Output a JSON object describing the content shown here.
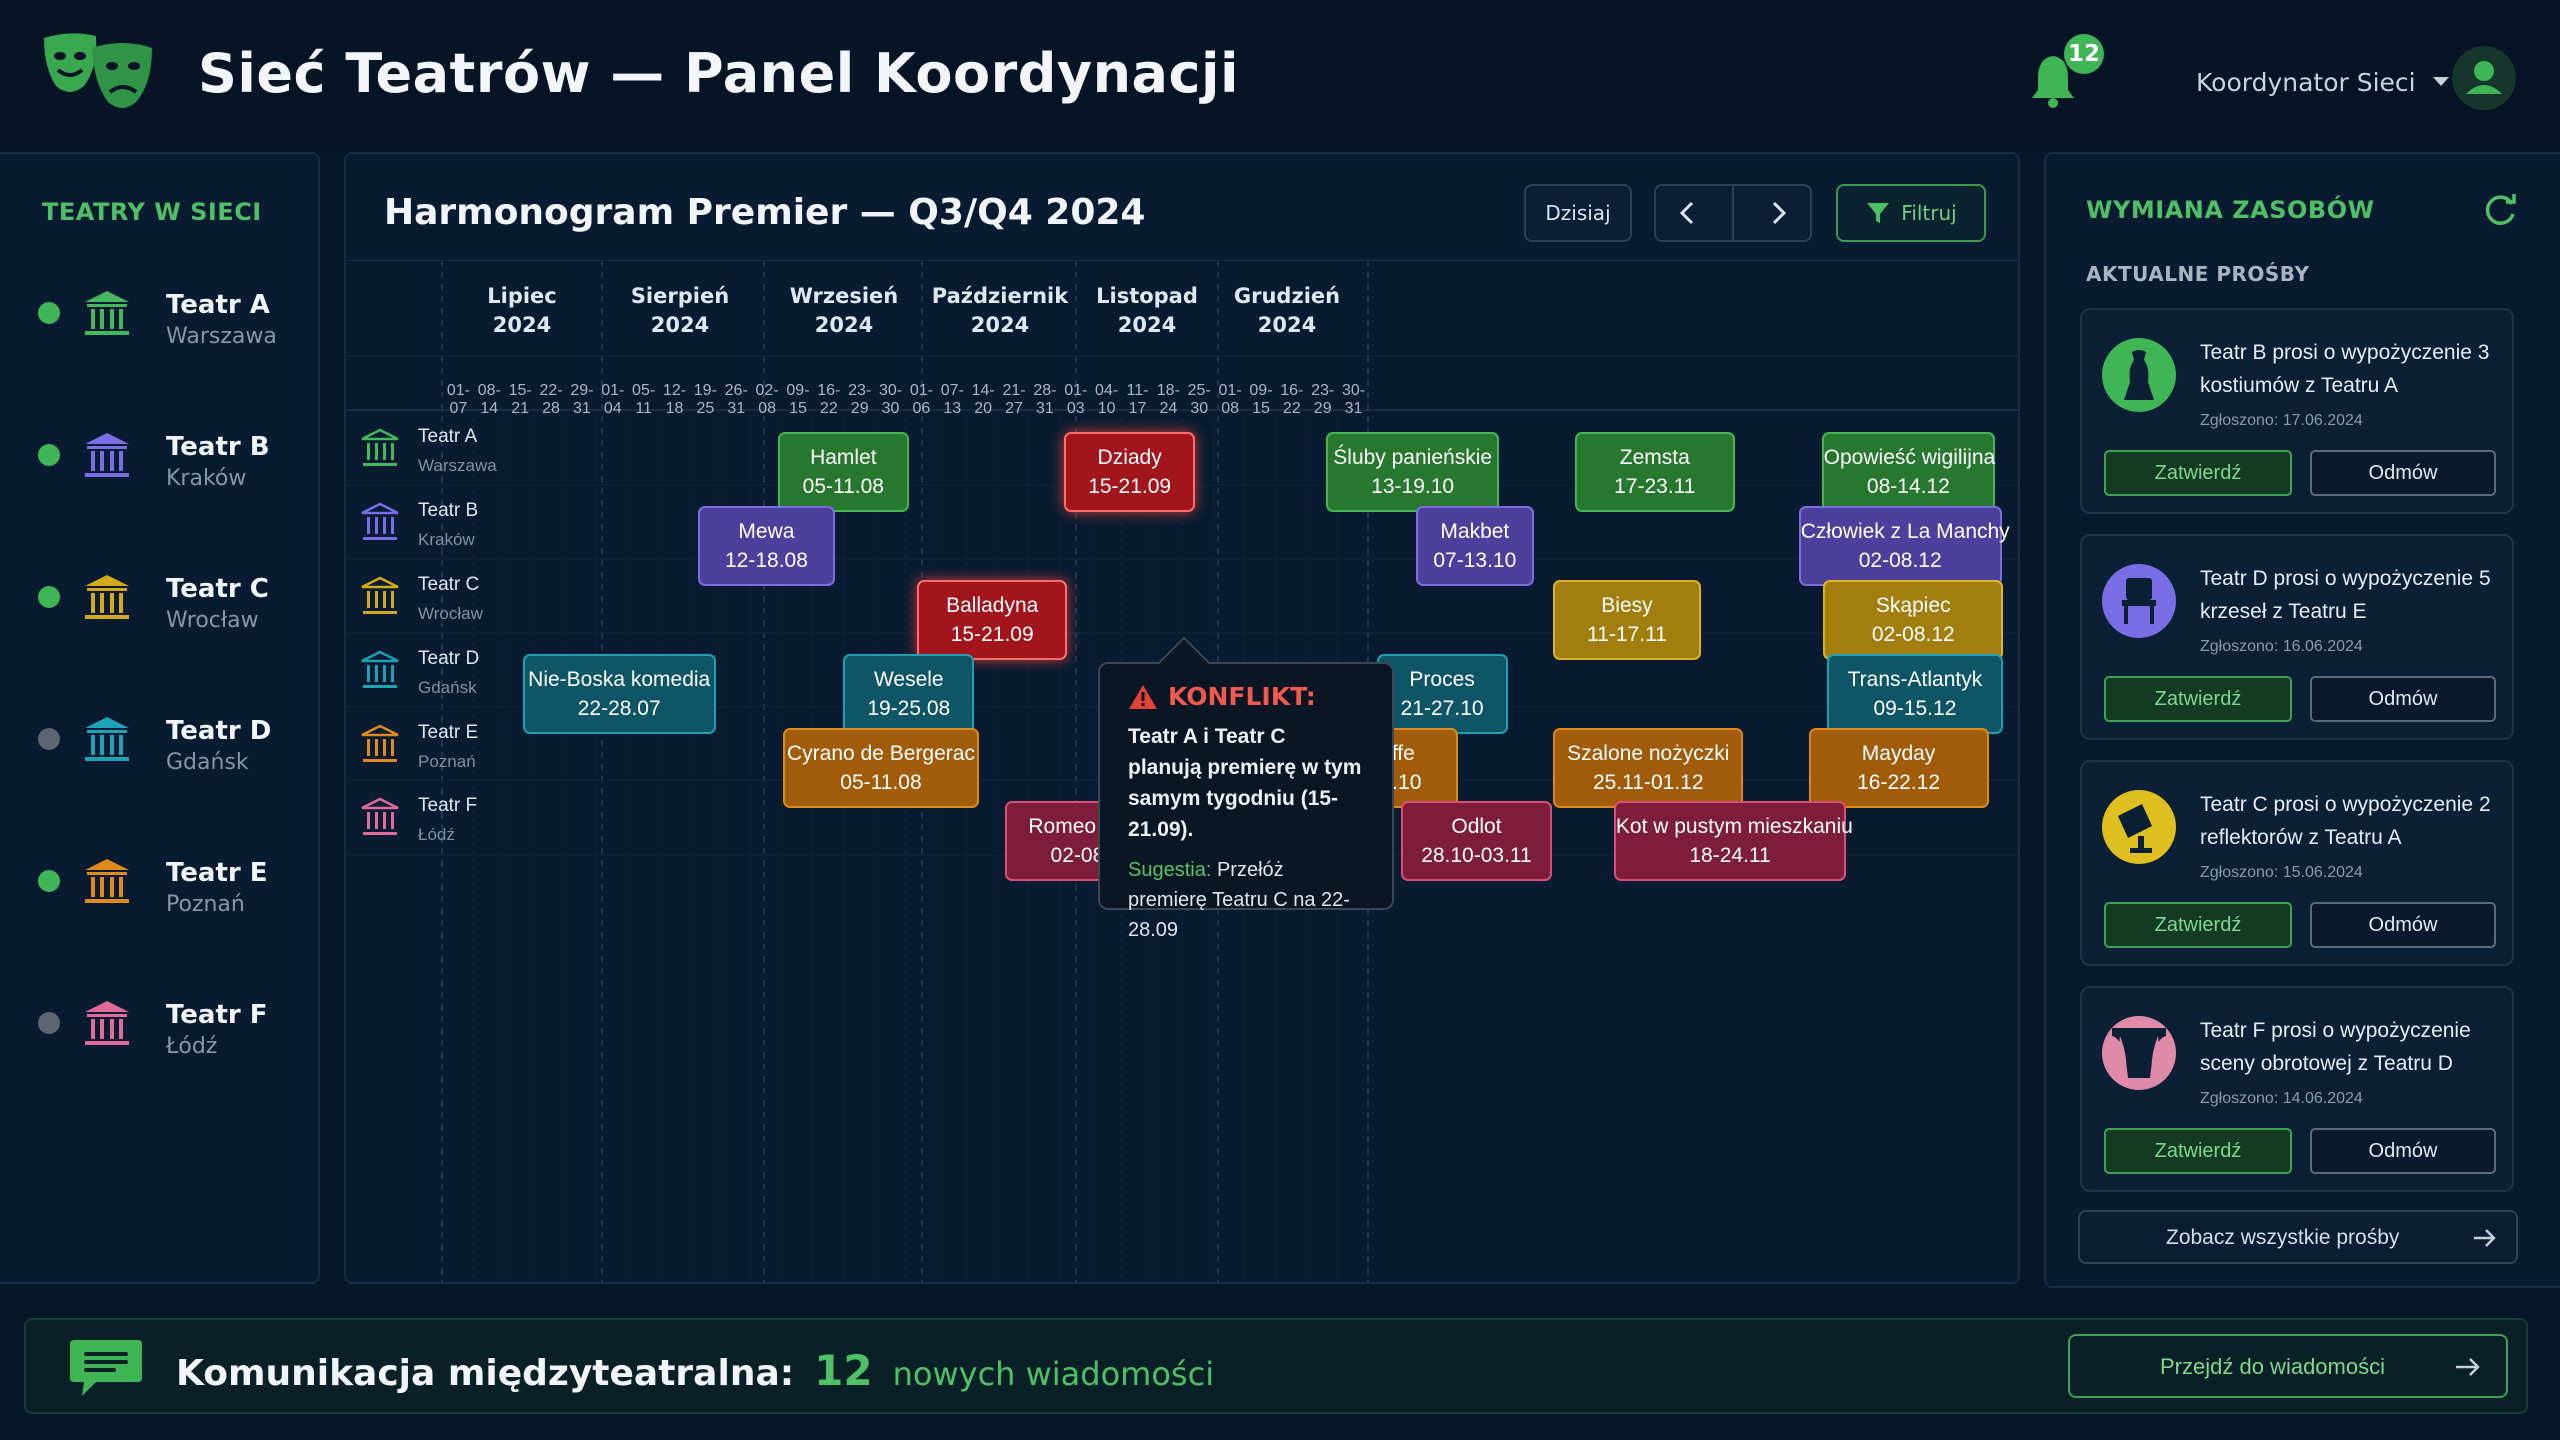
{
  "header": {
    "title": "Sieć Teatrów — Panel Koordynacji",
    "notifications_count": "12",
    "user_label": "Koordynator Sieci"
  },
  "theaters_panel": {
    "title": "TEATRY W SIECI",
    "items": [
      {
        "name": "Teatr A",
        "city": "Warszawa",
        "status": "online",
        "color": "#44b85c"
      },
      {
        "name": "Teatr B",
        "city": "Kraków",
        "status": "online",
        "color": "#7a6ee6"
      },
      {
        "name": "Teatr C",
        "city": "Wrocław",
        "status": "online",
        "color": "#d4a91c"
      },
      {
        "name": "Teatr D",
        "city": "Gdańsk",
        "status": "offline",
        "color": "#1ea2b5"
      },
      {
        "name": "Teatr E",
        "city": "Poznań",
        "status": "online",
        "color": "#e08a1e"
      },
      {
        "name": "Teatr F",
        "city": "Łódź",
        "status": "offline",
        "color": "#e06a9a"
      }
    ]
  },
  "schedule": {
    "title": "Harmonogram Premier — Q3/Q4 2024",
    "today_label": "Dzisiaj",
    "filter_label": "Filtruj",
    "months": [
      {
        "name": "Lipiec",
        "year": "2024"
      },
      {
        "name": "Sierpień",
        "year": "2024"
      },
      {
        "name": "Wrzesień",
        "year": "2024"
      },
      {
        "name": "Październik",
        "year": "2024"
      },
      {
        "name": "Listopad",
        "year": "2024"
      },
      {
        "name": "Grudzień",
        "year": "2024"
      }
    ],
    "weeks": [
      "01-07",
      "08-14",
      "15-21",
      "22-28",
      "29-31",
      "01-04",
      "05-11",
      "12-18",
      "19-25",
      "26-31",
      "02-08",
      "09-15",
      "16-22",
      "23-29",
      "30-30",
      "01-06",
      "07-13",
      "14-20",
      "21-27",
      "28-31",
      "01-03",
      "04-10",
      "11-17",
      "18-24",
      "25-30",
      "01-08",
      "09-15",
      "16-22",
      "23-29",
      "30-31"
    ],
    "rows": [
      {
        "name": "Teatr A",
        "city": "Warszawa"
      },
      {
        "name": "Teatr B",
        "city": "Kraków"
      },
      {
        "name": "Teatr C",
        "city": "Wrocław"
      },
      {
        "name": "Teatr D",
        "city": "Gdańsk"
      },
      {
        "name": "Teatr E",
        "city": "Poznań"
      },
      {
        "name": "Teatr F",
        "city": "Łódź"
      }
    ],
    "events": [
      {
        "title": "Hamlet",
        "dates": "05-11.08",
        "theater": "Teatr A"
      },
      {
        "title": "Dziady",
        "dates": "15-21.09",
        "theater": "Teatr A",
        "conflict": true
      },
      {
        "title": "Śluby panieńskie",
        "dates": "13-19.10",
        "theater": "Teatr A"
      },
      {
        "title": "Zemsta",
        "dates": "17-23.11",
        "theater": "Teatr A"
      },
      {
        "title": "Opowieść wigilijna",
        "dates": "08-14.12",
        "theater": "Teatr A"
      },
      {
        "title": "Mewa",
        "dates": "12-18.08",
        "theater": "Teatr B"
      },
      {
        "title": "Makbet",
        "dates": "07-13.10",
        "theater": "Teatr B"
      },
      {
        "title": "Człowiek z La Manchy",
        "dates": "02-08.12",
        "theater": "Teatr B"
      },
      {
        "title": "Balladyna",
        "dates": "15-21.09",
        "theater": "Teatr C",
        "conflict": true
      },
      {
        "title": "Biesy",
        "dates": "11-17.11",
        "theater": "Teatr C"
      },
      {
        "title": "Skąpiec",
        "dates": "02-08.12",
        "theater": "Teatr C"
      },
      {
        "title": "Nie-Boska komedia",
        "dates": "22-28.07",
        "theater": "Teatr D"
      },
      {
        "title": "Wesele",
        "dates": "19-25.08",
        "theater": "Teatr D"
      },
      {
        "title": "Proces",
        "dates": "21-27.10",
        "theater": "Teatr D"
      },
      {
        "title": "Trans-Atlantyk",
        "dates": "09-15.12",
        "theater": "Teatr D"
      },
      {
        "title": "Cyrano de Bergerac",
        "dates": "05-11.08",
        "theater": "Teatr E"
      },
      {
        "title": "Tartuffe",
        "dates": "14-20.10",
        "theater": "Teatr E"
      },
      {
        "title": "Szalone nożyczki",
        "dates": "25.11-01.12",
        "theater": "Teatr E"
      },
      {
        "title": "Mayday",
        "dates": "16-22.12",
        "theater": "Teatr E"
      },
      {
        "title": "Romeo i Julia",
        "dates": "02-08.09",
        "theater": "Teatr F"
      },
      {
        "title": "Odlot",
        "dates": "28.10-03.11",
        "theater": "Teatr F"
      },
      {
        "title": "Kot w pustym mieszkaniu",
        "dates": "18-24.11",
        "theater": "Teatr F"
      }
    ],
    "conflict": {
      "title": "KONFLIKT:",
      "message": "Teatr A i Teatr C planują premierę w tym samym tygodniu (15-21.09).",
      "suggestion_label": "Sugestia:",
      "suggestion_text": "Przełóż premierę Teatru C na 22-28.09"
    }
  },
  "resources": {
    "title": "WYMIANA ZASOBÓW",
    "subtitle": "AKTUALNE PROŚBY",
    "approve_label": "Zatwierdź",
    "deny_label": "Odmów",
    "requests": [
      {
        "text": "Teatr B prosi o wypożyczenie 3 kostiumów z Teatru A",
        "date": "Zgłoszono: 17.06.2024",
        "icon": "costume-icon"
      },
      {
        "text": "Teatr D prosi o wypożyczenie 5 krzeseł z Teatru E",
        "date": "Zgłoszono: 16.06.2024",
        "icon": "chair-icon"
      },
      {
        "text": "Teatr C prosi o wypożyczenie 2 reflektorów z Teatru A",
        "date": "Zgłoszono: 15.06.2024",
        "icon": "spotlight-icon"
      },
      {
        "text": "Teatr F prosi o wypożyczenie sceny obrotowej z Teatru D",
        "date": "Zgłoszono: 14.06.2024",
        "icon": "stage-icon"
      }
    ],
    "see_all_label": "Zobacz wszystkie prośby"
  },
  "messages_bar": {
    "label": "Komunikacja międzyteatralna:",
    "count": "12",
    "count_suffix": "nowych wiadomości",
    "button_label": "Przejdź do wiadomości"
  }
}
